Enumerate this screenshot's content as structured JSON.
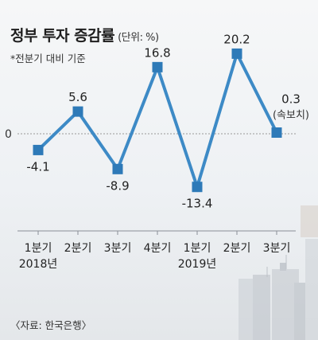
{
  "header": {
    "title": "정부 투자 증감률",
    "unit": "(단위: %)",
    "subtitle": "*전분기 대비 기준"
  },
  "source": "〈자료: 한국은행〉",
  "colors": {
    "line": "#3d8ac6",
    "marker": "#2e7ab8",
    "axis": "#8a8f96",
    "zero_line": "#999999"
  },
  "chart_data": {
    "type": "line",
    "title": "정부 투자 증감률",
    "unit": "%",
    "categories": [
      "1분기 2018년",
      "2분기",
      "3분기",
      "4분기",
      "1분기 2019년",
      "2분기",
      "3분기"
    ],
    "tick_labels": [
      {
        "line1": "1분기",
        "line2": "2018년"
      },
      {
        "line1": "2분기",
        "line2": ""
      },
      {
        "line1": "3분기",
        "line2": ""
      },
      {
        "line1": "4분기",
        "line2": ""
      },
      {
        "line1": "1분기",
        "line2": "2019년"
      },
      {
        "line1": "2분기",
        "line2": ""
      },
      {
        "line1": "3분기",
        "line2": ""
      }
    ],
    "series": [
      {
        "values": [
          -4.1,
          5.6,
          -8.9,
          16.8,
          -13.4,
          20.2,
          0.3
        ]
      }
    ],
    "value_labels": [
      "-4.1",
      "5.6",
      "-8.9",
      "16.8",
      "-13.4",
      "20.2",
      "0.3"
    ],
    "annotations": [
      {
        "index": 6,
        "text": "(속보치)"
      }
    ],
    "zero_label": "0",
    "ylim": [
      -15,
      22
    ],
    "grid": false,
    "legend": "none"
  }
}
